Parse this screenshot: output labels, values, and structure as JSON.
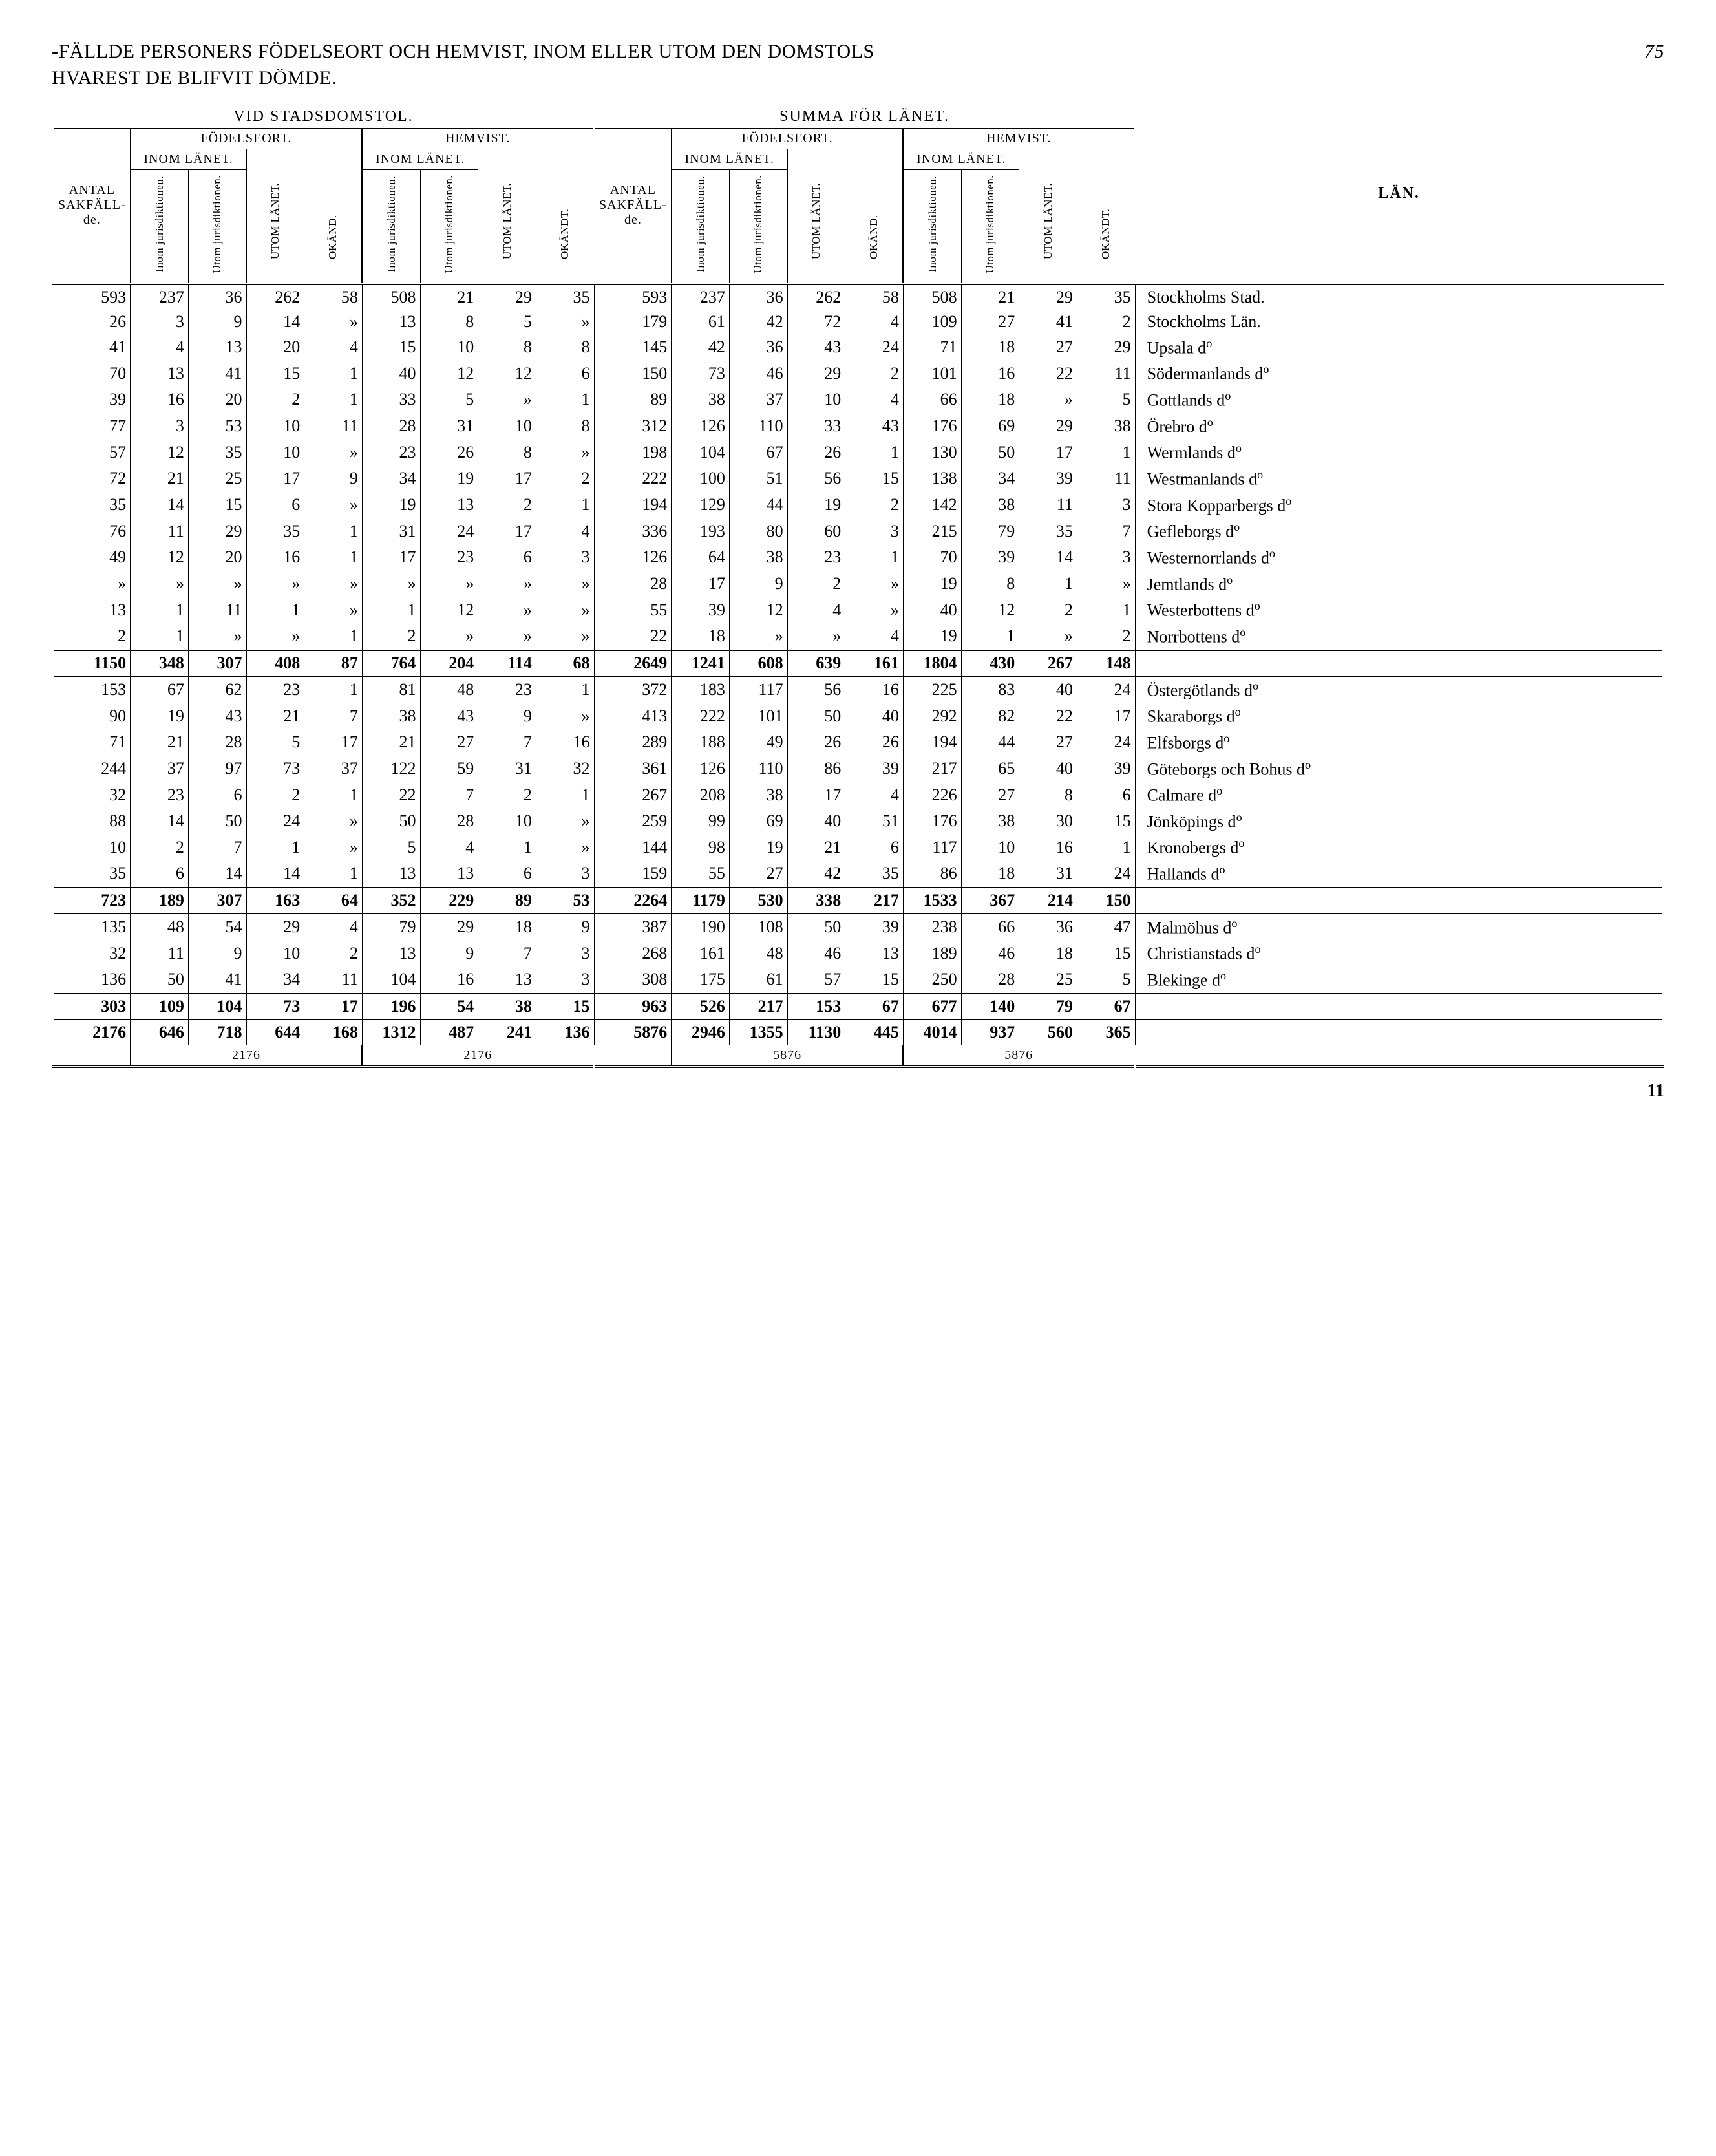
{
  "page": {
    "title_upper": "-FÄLLDE PERSONERS FÖDELSEORT OCH HEMVIST, INOM ELLER UTOM DEN DOMSTOLS",
    "title_lower": "HVAREST DE BLIFVIT DÖMDE.",
    "page_num_top": "75",
    "page_num_bottom": "11"
  },
  "headers": {
    "vid_stadsdomstol": "VID STADSDOMSTOL.",
    "summa_lanet": "SUMMA FÖR LÄNET.",
    "fodelseort": "FÖDELSEORT.",
    "hemvist": "HEMVIST.",
    "antal_sakfallde": "ANTAL SAKFÄLL- de.",
    "inom_lanet": "INOM LÄNET.",
    "inom_jur": "Inom jurisdiktionen.",
    "utom_jur": "Utom jurisdiktionen.",
    "utom_lanet": "UTOM LÄNET.",
    "okand": "OKÄND.",
    "okandt": "OKÄNDT.",
    "lan": "LÄN."
  },
  "footer_totals": {
    "left_f_total": "2176",
    "left_h_total": "2176",
    "right_f_total": "5876",
    "right_h_total": "5876"
  },
  "groups": [
    {
      "rows": [
        {
          "s": [
            "593",
            "237",
            "36",
            "262",
            "58",
            "508",
            "21",
            "29",
            "35"
          ],
          "t": [
            "593",
            "237",
            "36",
            "262",
            "58",
            "508",
            "21",
            "29",
            "35"
          ],
          "lan": "Stockholms Stad."
        },
        {
          "s": [
            "26",
            "3",
            "9",
            "14",
            "»",
            "13",
            "8",
            "5",
            "»"
          ],
          "t": [
            "179",
            "61",
            "42",
            "72",
            "4",
            "109",
            "27",
            "41",
            "2"
          ],
          "lan": "Stockholms Län."
        },
        {
          "s": [
            "41",
            "4",
            "13",
            "20",
            "4",
            "15",
            "10",
            "8",
            "8"
          ],
          "t": [
            "145",
            "42",
            "36",
            "43",
            "24",
            "71",
            "18",
            "27",
            "29"
          ],
          "lan": "Upsala d:o"
        },
        {
          "s": [
            "70",
            "13",
            "41",
            "15",
            "1",
            "40",
            "12",
            "12",
            "6"
          ],
          "t": [
            "150",
            "73",
            "46",
            "29",
            "2",
            "101",
            "16",
            "22",
            "11"
          ],
          "lan": "Södermanlands d:o"
        },
        {
          "s": [
            "39",
            "16",
            "20",
            "2",
            "1",
            "33",
            "5",
            "»",
            "1"
          ],
          "t": [
            "89",
            "38",
            "37",
            "10",
            "4",
            "66",
            "18",
            "»",
            "5"
          ],
          "lan": "Gottlands d:o"
        },
        {
          "s": [
            "77",
            "3",
            "53",
            "10",
            "11",
            "28",
            "31",
            "10",
            "8"
          ],
          "t": [
            "312",
            "126",
            "110",
            "33",
            "43",
            "176",
            "69",
            "29",
            "38"
          ],
          "lan": "Örebro d:o"
        },
        {
          "s": [
            "57",
            "12",
            "35",
            "10",
            "»",
            "23",
            "26",
            "8",
            "»"
          ],
          "t": [
            "198",
            "104",
            "67",
            "26",
            "1",
            "130",
            "50",
            "17",
            "1"
          ],
          "lan": "Wermlands d:o"
        },
        {
          "s": [
            "72",
            "21",
            "25",
            "17",
            "9",
            "34",
            "19",
            "17",
            "2"
          ],
          "t": [
            "222",
            "100",
            "51",
            "56",
            "15",
            "138",
            "34",
            "39",
            "11"
          ],
          "lan": "Westmanlands d:o"
        },
        {
          "s": [
            "35",
            "14",
            "15",
            "6",
            "»",
            "19",
            "13",
            "2",
            "1"
          ],
          "t": [
            "194",
            "129",
            "44",
            "19",
            "2",
            "142",
            "38",
            "11",
            "3"
          ],
          "lan": "Stora Kopparbergs d:o"
        },
        {
          "s": [
            "76",
            "11",
            "29",
            "35",
            "1",
            "31",
            "24",
            "17",
            "4"
          ],
          "t": [
            "336",
            "193",
            "80",
            "60",
            "3",
            "215",
            "79",
            "35",
            "7"
          ],
          "lan": "Gefleborgs d:o"
        },
        {
          "s": [
            "49",
            "12",
            "20",
            "16",
            "1",
            "17",
            "23",
            "6",
            "3"
          ],
          "t": [
            "126",
            "64",
            "38",
            "23",
            "1",
            "70",
            "39",
            "14",
            "3"
          ],
          "lan": "Westernorrlands d:o"
        },
        {
          "s": [
            "»",
            "»",
            "»",
            "»",
            "»",
            "»",
            "»",
            "»",
            "»"
          ],
          "t": [
            "28",
            "17",
            "9",
            "2",
            "»",
            "19",
            "8",
            "1",
            "»"
          ],
          "lan": "Jemtlands d:o"
        },
        {
          "s": [
            "13",
            "1",
            "11",
            "1",
            "»",
            "1",
            "12",
            "»",
            "»"
          ],
          "t": [
            "55",
            "39",
            "12",
            "4",
            "»",
            "40",
            "12",
            "2",
            "1"
          ],
          "lan": "Westerbottens d:o"
        },
        {
          "s": [
            "2",
            "1",
            "»",
            "»",
            "1",
            "2",
            "»",
            "»",
            "»"
          ],
          "t": [
            "22",
            "18",
            "»",
            "»",
            "4",
            "19",
            "1",
            "»",
            "2"
          ],
          "lan": "Norrbottens d:o"
        }
      ],
      "subtotal": {
        "s": [
          "1150",
          "348",
          "307",
          "408",
          "87",
          "764",
          "204",
          "114",
          "68"
        ],
        "t": [
          "2649",
          "1241",
          "608",
          "639",
          "161",
          "1804",
          "430",
          "267",
          "148"
        ],
        "lan": ""
      }
    },
    {
      "rows": [
        {
          "s": [
            "153",
            "67",
            "62",
            "23",
            "1",
            "81",
            "48",
            "23",
            "1"
          ],
          "t": [
            "372",
            "183",
            "117",
            "56",
            "16",
            "225",
            "83",
            "40",
            "24"
          ],
          "lan": "Östergötlands d:o"
        },
        {
          "s": [
            "90",
            "19",
            "43",
            "21",
            "7",
            "38",
            "43",
            "9",
            "»"
          ],
          "t": [
            "413",
            "222",
            "101",
            "50",
            "40",
            "292",
            "82",
            "22",
            "17"
          ],
          "lan": "Skaraborgs d:o"
        },
        {
          "s": [
            "71",
            "21",
            "28",
            "5",
            "17",
            "21",
            "27",
            "7",
            "16"
          ],
          "t": [
            "289",
            "188",
            "49",
            "26",
            "26",
            "194",
            "44",
            "27",
            "24"
          ],
          "lan": "Elfsborgs d:o"
        },
        {
          "s": [
            "244",
            "37",
            "97",
            "73",
            "37",
            "122",
            "59",
            "31",
            "32"
          ],
          "t": [
            "361",
            "126",
            "110",
            "86",
            "39",
            "217",
            "65",
            "40",
            "39"
          ],
          "lan": "Göteborgs och Bohus d:o"
        },
        {
          "s": [
            "32",
            "23",
            "6",
            "2",
            "1",
            "22",
            "7",
            "2",
            "1"
          ],
          "t": [
            "267",
            "208",
            "38",
            "17",
            "4",
            "226",
            "27",
            "8",
            "6"
          ],
          "lan": "Calmare d:o"
        },
        {
          "s": [
            "88",
            "14",
            "50",
            "24",
            "»",
            "50",
            "28",
            "10",
            "»"
          ],
          "t": [
            "259",
            "99",
            "69",
            "40",
            "51",
            "176",
            "38",
            "30",
            "15"
          ],
          "lan": "Jönköpings d:o"
        },
        {
          "s": [
            "10",
            "2",
            "7",
            "1",
            "»",
            "5",
            "4",
            "1",
            "»"
          ],
          "t": [
            "144",
            "98",
            "19",
            "21",
            "6",
            "117",
            "10",
            "16",
            "1"
          ],
          "lan": "Kronobergs d:o"
        },
        {
          "s": [
            "35",
            "6",
            "14",
            "14",
            "1",
            "13",
            "13",
            "6",
            "3"
          ],
          "t": [
            "159",
            "55",
            "27",
            "42",
            "35",
            "86",
            "18",
            "31",
            "24"
          ],
          "lan": "Hallands d:o"
        }
      ],
      "subtotal": {
        "s": [
          "723",
          "189",
          "307",
          "163",
          "64",
          "352",
          "229",
          "89",
          "53"
        ],
        "t": [
          "2264",
          "1179",
          "530",
          "338",
          "217",
          "1533",
          "367",
          "214",
          "150"
        ],
        "lan": ""
      }
    },
    {
      "rows": [
        {
          "s": [
            "135",
            "48",
            "54",
            "29",
            "4",
            "79",
            "29",
            "18",
            "9"
          ],
          "t": [
            "387",
            "190",
            "108",
            "50",
            "39",
            "238",
            "66",
            "36",
            "47"
          ],
          "lan": "Malmöhus d:o"
        },
        {
          "s": [
            "32",
            "11",
            "9",
            "10",
            "2",
            "13",
            "9",
            "7",
            "3"
          ],
          "t": [
            "268",
            "161",
            "48",
            "46",
            "13",
            "189",
            "46",
            "18",
            "15"
          ],
          "lan": "Christianstads d:o"
        },
        {
          "s": [
            "136",
            "50",
            "41",
            "34",
            "11",
            "104",
            "16",
            "13",
            "3"
          ],
          "t": [
            "308",
            "175",
            "61",
            "57",
            "15",
            "250",
            "28",
            "25",
            "5"
          ],
          "lan": "Blekinge d:o"
        }
      ],
      "subtotal": {
        "s": [
          "303",
          "109",
          "104",
          "73",
          "17",
          "196",
          "54",
          "38",
          "15"
        ],
        "t": [
          "963",
          "526",
          "217",
          "153",
          "67",
          "677",
          "140",
          "79",
          "67"
        ],
        "lan": ""
      }
    }
  ],
  "grand_total": {
    "s": [
      "2176",
      "646",
      "718",
      "644",
      "168",
      "1312",
      "487",
      "241",
      "136"
    ],
    "t": [
      "5876",
      "2946",
      "1355",
      "1130",
      "445",
      "4014",
      "937",
      "560",
      "365"
    ],
    "lan": ""
  }
}
